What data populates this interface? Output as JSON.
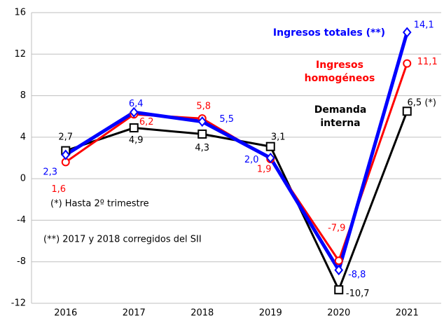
{
  "chart_data": {
    "type": "line",
    "categories": [
      "2016",
      "2017",
      "2018",
      "2019",
      "2020",
      "2021"
    ],
    "series": [
      {
        "name": "Demanda interna",
        "color": "#000000",
        "marker": "square",
        "values": [
          2.7,
          4.9,
          4.3,
          3.1,
          -10.7,
          6.5
        ],
        "value_labels": [
          "2,7",
          "4,9",
          "4,3",
          "3,1",
          "-10,7",
          "6,5 (*)"
        ]
      },
      {
        "name": "Ingresos homogéneos",
        "color": "#ff0000",
        "marker": "circle",
        "values": [
          1.6,
          6.2,
          5.8,
          1.9,
          -7.9,
          11.1
        ],
        "value_labels": [
          "1,6",
          "6,2",
          "5,8",
          "1,9",
          "-7,9",
          "11,1"
        ]
      },
      {
        "name": "Ingresos totales (**)",
        "color": "#0000ff",
        "marker": "diamond",
        "values": [
          2.3,
          6.4,
          5.5,
          2.0,
          -8.8,
          14.1
        ],
        "value_labels": [
          "2,3",
          "6,4",
          "5,5",
          "2,0",
          "-8,8",
          "14,1"
        ]
      }
    ],
    "ylim": [
      -12,
      16
    ],
    "yticks": [
      -12,
      -8,
      -4,
      0,
      4,
      8,
      12,
      16
    ],
    "grid": true,
    "annotations": [
      "(*) Hasta 2º trimestre",
      "(**) 2017 y 2018 corregidos del SII"
    ]
  }
}
